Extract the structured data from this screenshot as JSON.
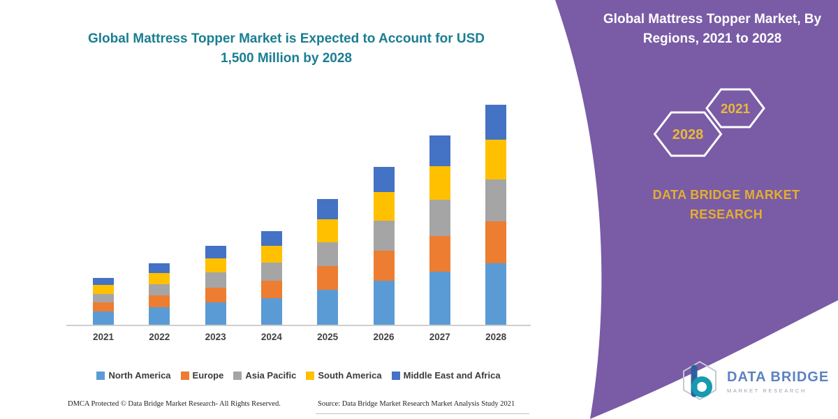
{
  "left": {
    "title_line1": "Global Mattress Topper Market is Expected to Account for USD",
    "title_line2": "1,500 Million by 2028",
    "title_color": "#1A7E91",
    "footer": {
      "dmca": "DMCA Protected © Data Bridge Market Research-  All Rights Reserved.",
      "source": "Source: Data Bridge Market Research  Market Analysis Study 2021"
    }
  },
  "chart_data": {
    "type": "bar",
    "stacked": true,
    "title": "Global Mattress Topper Market is Expected to Account for USD 1,500 Million by 2028",
    "unit": "USD Million",
    "categories": [
      "2021",
      "2022",
      "2023",
      "2024",
      "2025",
      "2026",
      "2027",
      "2028"
    ],
    "series": [
      {
        "name": "North America",
        "color": "#5B9BD5",
        "values": [
          90,
          118,
          151,
          179,
          239,
          301,
          361,
          420
        ]
      },
      {
        "name": "Europe",
        "color": "#ED7D31",
        "values": [
          61,
          80,
          103,
          122,
          162,
          204,
          245,
          285
        ]
      },
      {
        "name": "Asia Pacific",
        "color": "#A5A5A5",
        "values": [
          61,
          80,
          103,
          122,
          162,
          204,
          245,
          285
        ]
      },
      {
        "name": "South America",
        "color": "#FFC000",
        "values": [
          58,
          76,
          97,
          115,
          154,
          194,
          232,
          270
        ]
      },
      {
        "name": "Middle East and Africa",
        "color": "#4472C4",
        "values": [
          50,
          66,
          86,
          102,
          138,
          172,
          207,
          240
        ]
      }
    ],
    "totals": [
      320,
      420,
      540,
      640,
      855,
      1075,
      1290,
      1500
    ],
    "ylim": [
      0,
      1600
    ],
    "grid": false,
    "legend_position": "bottom"
  },
  "right_panel": {
    "bg_color": "#7A5BA6",
    "title_line1": "Global Mattress Topper Market, By",
    "title_line2": "Regions, 2021 to 2028",
    "hexagons": [
      {
        "label": "2028"
      },
      {
        "label": "2021"
      }
    ],
    "year_color": "#E9BA3A",
    "brand_line1": "DATA BRIDGE MARKET",
    "brand_line2": "RESEARCH",
    "brand_color": "#E3AF2D"
  },
  "logo": {
    "name_line1": "DATA BRIDGE",
    "name_line2": "MARKET RESEARCH"
  }
}
